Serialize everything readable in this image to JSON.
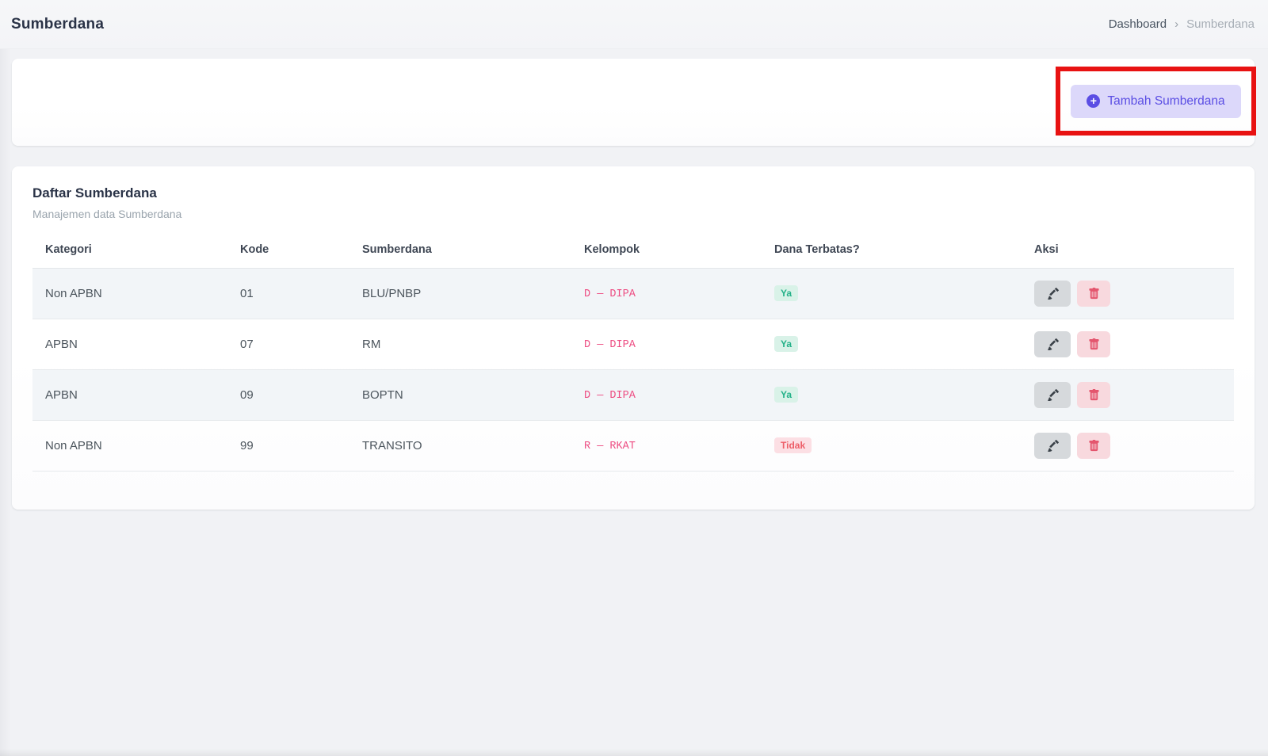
{
  "page": {
    "title": "Sumberdana"
  },
  "breadcrumb": {
    "items": [
      "Dashboard",
      "Sumberdana"
    ],
    "separator": "›"
  },
  "toolbar": {
    "add_button_label": "Tambah Sumberdana",
    "add_button_icon": "plus-circle-icon"
  },
  "card": {
    "title": "Daftar Sumberdana",
    "subtitle": "Manajemen data Sumberdana"
  },
  "table": {
    "columns": [
      "Kategori",
      "Kode",
      "Sumberdana",
      "Kelompok",
      "Dana Terbatas?",
      "Aksi"
    ],
    "rows": [
      {
        "kategori": "Non APBN",
        "kode": "01",
        "sumberdana": "BLU/PNBP",
        "kelompok": "D — DIPA",
        "dana_terbatas": "Ya"
      },
      {
        "kategori": "APBN",
        "kode": "07",
        "sumberdana": "RM",
        "kelompok": "D — DIPA",
        "dana_terbatas": "Ya"
      },
      {
        "kategori": "APBN",
        "kode": "09",
        "sumberdana": "BOPTN",
        "kelompok": "D — DIPA",
        "dana_terbatas": "Ya"
      },
      {
        "kategori": "Non APBN",
        "kode": "99",
        "sumberdana": "TRANSITO",
        "kelompok": "R — RKAT",
        "dana_terbatas": "Tidak"
      }
    ],
    "action_icons": [
      "pencil-icon",
      "trash-icon"
    ]
  },
  "colors": {
    "accent": "#5b4ee4",
    "accent_bg": "#dcd8fa",
    "annotation_red": "#e81212",
    "success_text": "#23b188",
    "success_bg": "#d9f2e8",
    "danger_text": "#ed5e68",
    "danger_bg": "#fcdfe4",
    "code_pink": "#ed4c82",
    "edit_icon": "#3a4148",
    "trash_icon": "#e4566e"
  }
}
